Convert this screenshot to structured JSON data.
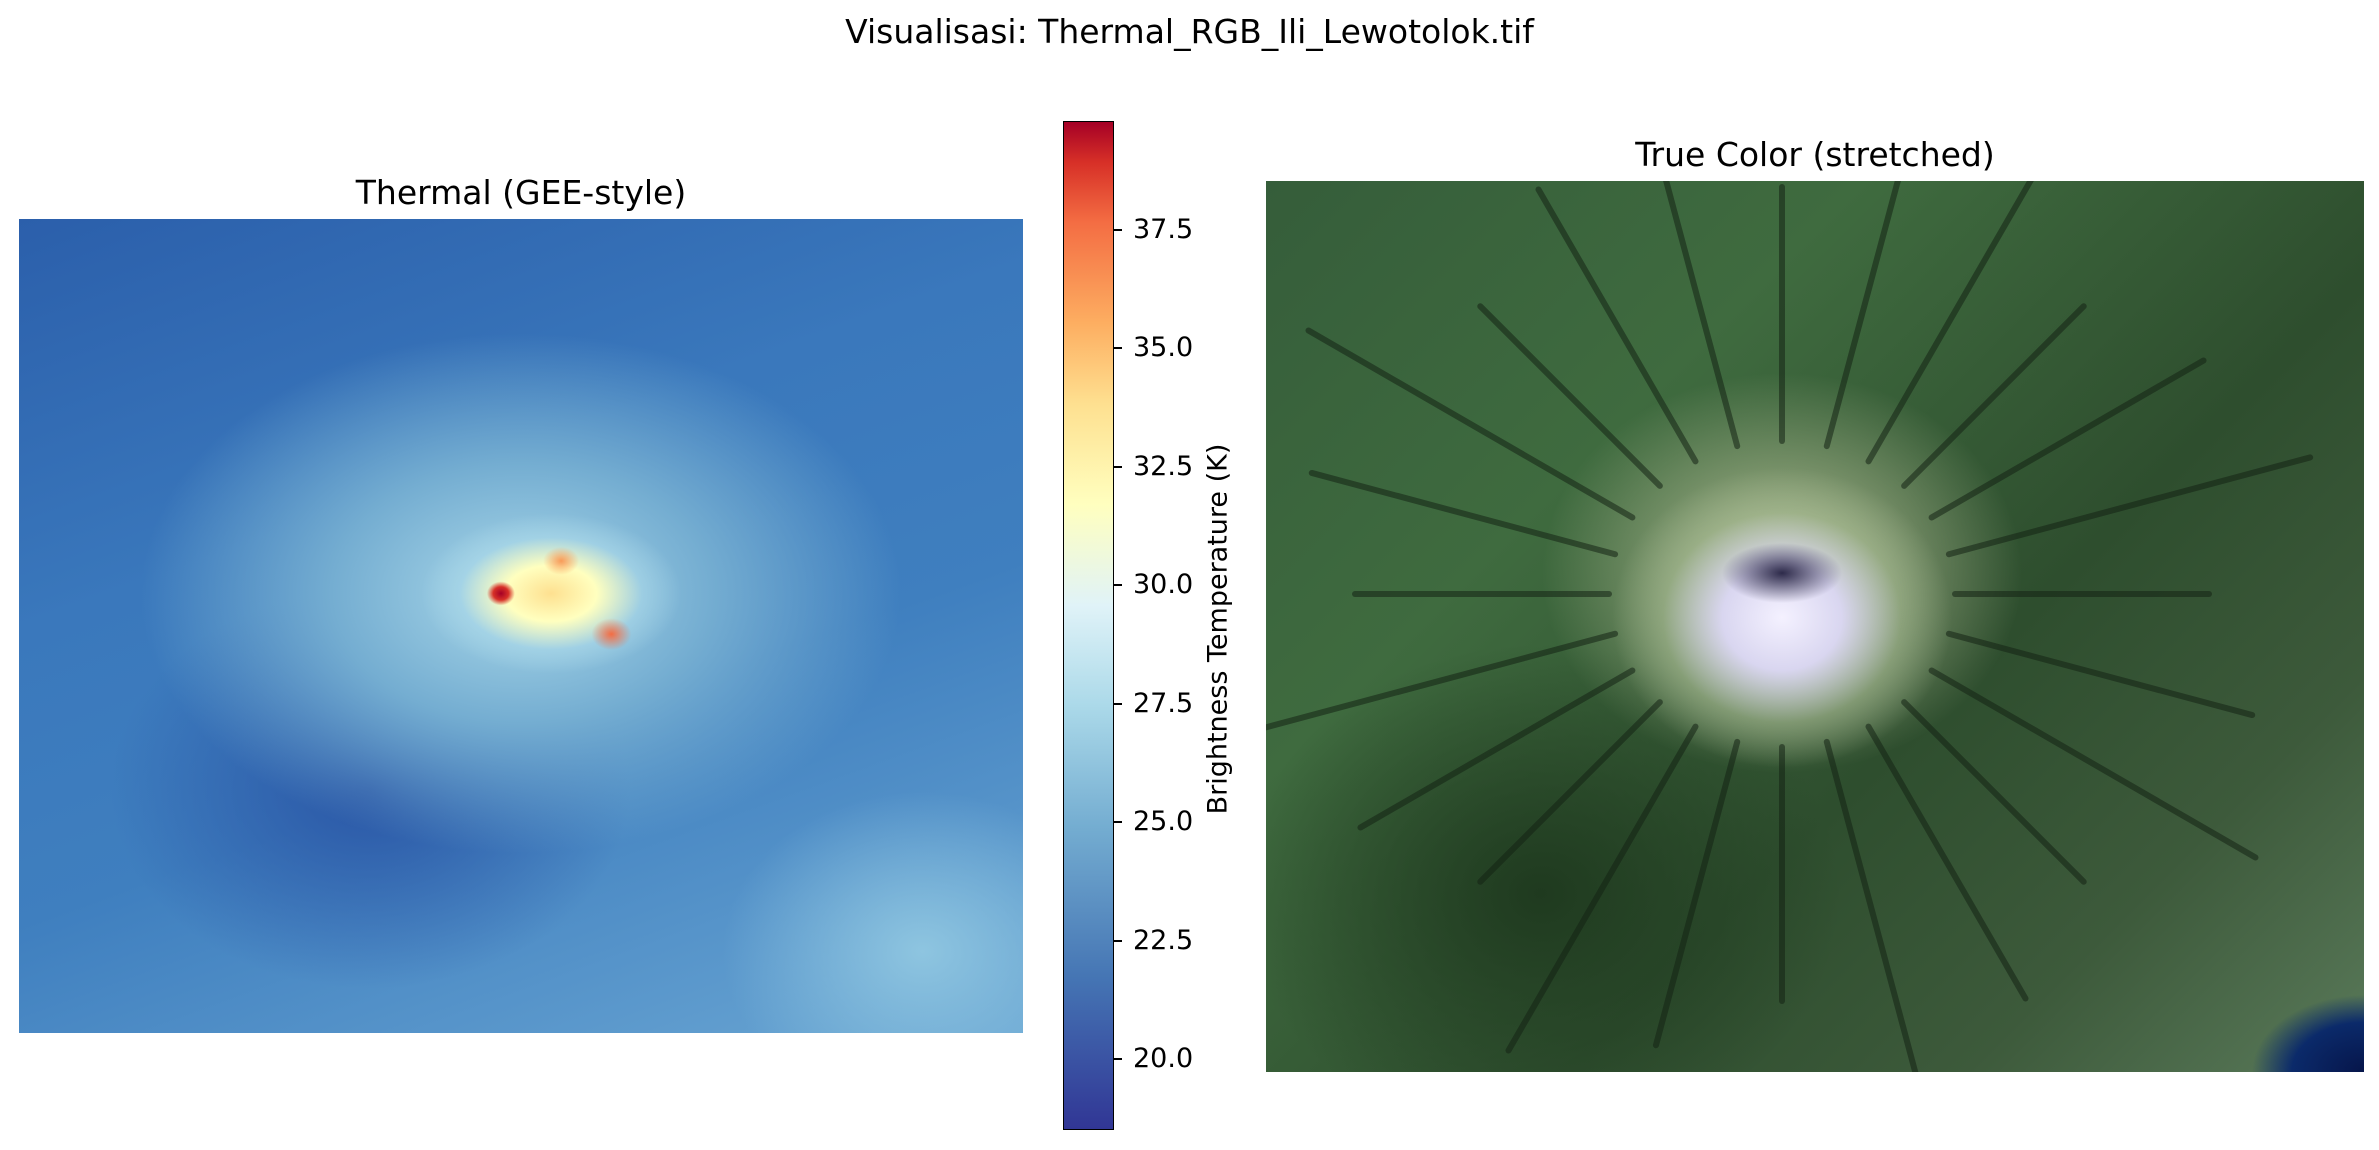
{
  "figure": {
    "suptitle": "Visualisasi: Thermal_RGB_Ili_Lewotolok.tif"
  },
  "chart_data": [
    {
      "type": "heatmap",
      "title": "Thermal (GEE-style)",
      "colormap": "RdYlBu_r",
      "axes_visible": false,
      "colorbar": {
        "label": "Brightness Temperature (K)",
        "range": [
          18.5,
          39.8
        ],
        "ticks": [
          20.0,
          22.5,
          25.0,
          27.5,
          30.0,
          32.5,
          35.0,
          37.5
        ],
        "tick_labels": [
          "20.0",
          "22.5",
          "25.0",
          "27.5",
          "30.0",
          "32.5",
          "35.0",
          "37.5"
        ]
      }
    },
    {
      "type": "image",
      "title": "True Color (stretched)",
      "axes_visible": false
    }
  ]
}
